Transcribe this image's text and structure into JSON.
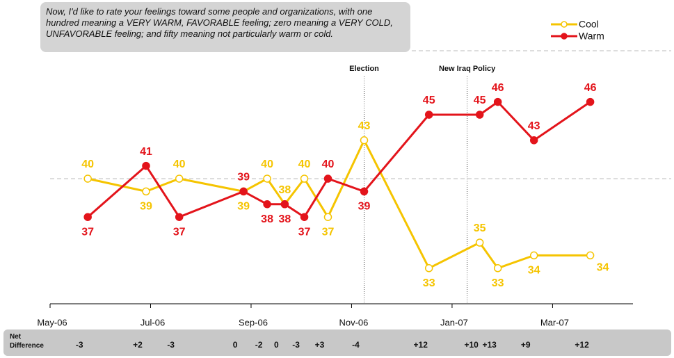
{
  "chart_data": {
    "type": "line",
    "title": "Now, I'd like to rate your feelings toward some people and organizations, with one hundred meaning a VERY WARM, FAVORABLE feeling; zero meaning a VERY COLD, UNFAVORABLE feeling; and fifty meaning not particularly warm or cold.",
    "x": [
      5.75,
      6.91,
      7.57,
      8.85,
      9.32,
      9.67,
      10.06,
      10.53,
      11.25,
      12.54,
      13.55,
      13.91,
      14.63,
      15.75
    ],
    "xlim": [
      5,
      16.6
    ],
    "xticks": [
      {
        "value": 5,
        "label": "May-06"
      },
      {
        "value": 7,
        "label": "Jul-06"
      },
      {
        "value": 9,
        "label": "Sep-06"
      },
      {
        "value": 11,
        "label": "Nov-06"
      },
      {
        "value": 13,
        "label": "Jan-07"
      },
      {
        "value": 15,
        "label": "Mar-07"
      }
    ],
    "ylim": [
      30,
      50
    ],
    "ygrid": [
      40,
      50
    ],
    "series": [
      {
        "name": "Cool",
        "color": "#f5c400",
        "marker": "hollow",
        "values": [
          40,
          39,
          40,
          39,
          40,
          38,
          40,
          37,
          43,
          33,
          35,
          33,
          34,
          34
        ]
      },
      {
        "name": "Warm",
        "color": "#e3141b",
        "marker": "filled",
        "values": [
          37,
          41,
          37,
          39,
          38,
          38,
          37,
          40,
          39,
          45,
          45,
          46,
          43,
          46
        ]
      }
    ],
    "annotations": [
      {
        "x": 11.25,
        "text": "Election"
      },
      {
        "x": 13.3,
        "text": "New Iraq Policy"
      }
    ],
    "net_difference": {
      "label": "Net Difference",
      "values": [
        -3,
        2,
        -3,
        0,
        -2,
        0,
        -3,
        3,
        -4,
        12,
        10,
        13,
        9,
        12
      ],
      "value_labels": [
        "-3",
        "+2",
        "-3",
        "0",
        "-2",
        "0",
        "-3",
        "+3",
        "-4",
        "+12",
        "+10",
        "+13",
        "+9",
        "+12"
      ]
    },
    "legend": "top-right"
  }
}
